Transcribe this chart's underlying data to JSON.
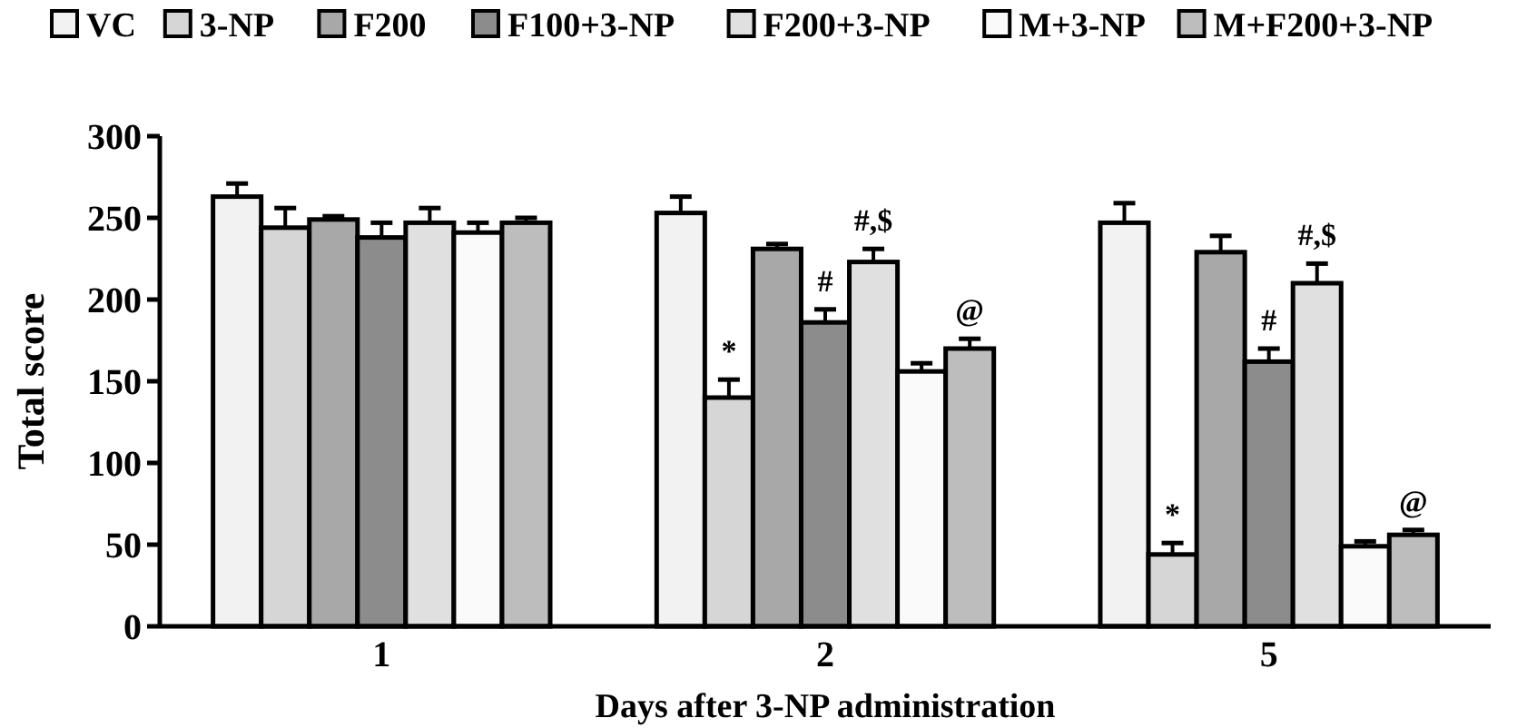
{
  "chart_data": {
    "type": "bar",
    "xlabel": "Days after 3-NP administration",
    "ylabel": "Total score",
    "categories": [
      "1",
      "2",
      "5"
    ],
    "series": [
      {
        "name": "VC",
        "color": "#f2f2f2",
        "values": [
          263,
          253,
          247
        ],
        "errors": [
          8,
          10,
          12
        ]
      },
      {
        "name": "3-NP",
        "color": "#d6d6d6",
        "values": [
          244,
          140,
          44
        ],
        "errors": [
          12,
          11,
          7
        ],
        "value_labels": [
          null,
          "*",
          "*"
        ]
      },
      {
        "name": "F200",
        "color": "#a8a8a8",
        "values": [
          249,
          231,
          229
        ],
        "errors": [
          2,
          3,
          10
        ]
      },
      {
        "name": "F100+3-NP",
        "color": "#8c8c8c",
        "values": [
          238,
          186,
          162
        ],
        "errors": [
          9,
          8,
          8
        ],
        "value_labels": [
          null,
          "#",
          "#"
        ]
      },
      {
        "name": "F200+3-NP",
        "color": "#e0e0e0",
        "values": [
          247,
          223,
          210
        ],
        "errors": [
          9,
          8,
          12
        ],
        "value_labels": [
          null,
          "#,$",
          "#,$"
        ]
      },
      {
        "name": "M+3-NP",
        "color": "#fafafa",
        "values": [
          241,
          156,
          49
        ],
        "errors": [
          6,
          5,
          3
        ]
      },
      {
        "name": "M+F200+3-NP",
        "color": "#bdbdbd",
        "values": [
          247,
          170,
          56
        ],
        "errors": [
          3,
          6,
          3
        ],
        "value_labels": [
          null,
          "@",
          "@"
        ]
      }
    ],
    "ylim": [
      0,
      300
    ],
    "yticks": [
      0,
      50,
      100,
      150,
      200,
      250,
      300
    ],
    "grid": false,
    "legend": "top"
  }
}
